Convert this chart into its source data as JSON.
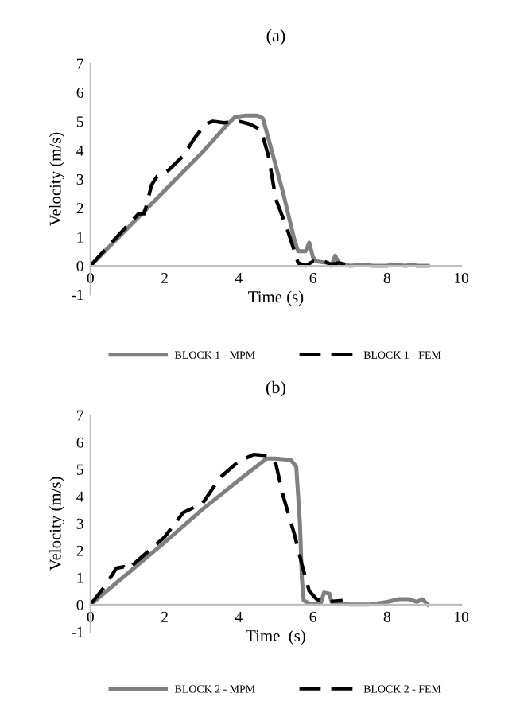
{
  "chart_data": [
    {
      "type": "line",
      "title": "(a)",
      "xlabel": "Time (s)",
      "ylabel": "Velocity (m/s)",
      "xlim": [
        0,
        10
      ],
      "ylim": [
        -1,
        7
      ],
      "xticks": [
        0,
        2,
        4,
        6,
        8,
        10
      ],
      "yticks": [
        -1,
        0,
        1,
        2,
        3,
        4,
        5,
        6,
        7
      ],
      "grid": false,
      "legend": "bottom",
      "marker": "none",
      "series": [
        {
          "name": "BLOCK 1 - MPM",
          "color": "#808080",
          "line_style": "solid",
          "x": [
            0,
            1,
            2,
            3,
            3.7,
            3.9,
            4.2,
            4.5,
            4.65,
            4.8,
            5.2,
            5.5,
            5.6,
            5.8,
            5.9,
            6.0,
            6.1,
            6.4,
            6.5,
            6.6,
            6.7,
            7,
            7.5,
            7.6,
            8,
            8.1,
            8.5,
            8.7,
            8.8,
            9.1
          ],
          "values": [
            0,
            1.3,
            2.6,
            3.9,
            4.9,
            5.15,
            5.2,
            5.2,
            5.1,
            4.4,
            2.5,
            0.9,
            0.5,
            0.5,
            0.8,
            0.3,
            0.15,
            0.1,
            0,
            0.35,
            0.1,
            0,
            0.05,
            0,
            0,
            0.05,
            0,
            0.05,
            0,
            0
          ]
        },
        {
          "name": "BLOCK 1 - FEM",
          "color": "#000000",
          "line_style": "dashed",
          "x": [
            0,
            0.5,
            1,
            1.3,
            1.45,
            1.65,
            1.8,
            2.1,
            2.5,
            2.8,
            3.1,
            3.3,
            3.6,
            4.0,
            4.3,
            4.6,
            4.8,
            5.0,
            5.3,
            5.5,
            5.6,
            5.8,
            6.0,
            6.3,
            6.5,
            6.7,
            7.0
          ],
          "values": [
            0,
            0.7,
            1.4,
            1.8,
            1.8,
            2.8,
            3.1,
            3.3,
            3.8,
            4.4,
            4.9,
            5.0,
            4.95,
            5.0,
            4.9,
            4.7,
            3.8,
            2.3,
            1.3,
            0.5,
            0.1,
            0,
            0.15,
            0.15,
            0.05,
            0.1,
            0
          ]
        }
      ]
    },
    {
      "type": "line",
      "title": "(b)",
      "xlabel": "Time  (s)",
      "ylabel": "Velocity (m/s)",
      "xlim": [
        0,
        10
      ],
      "ylim": [
        -1,
        7
      ],
      "xticks": [
        0,
        2,
        4,
        6,
        8,
        10
      ],
      "yticks": [
        -1,
        0,
        1,
        2,
        3,
        4,
        5,
        6,
        7
      ],
      "grid": false,
      "legend": "bottom",
      "marker": "none",
      "series": [
        {
          "name": "BLOCK 2 - MPM",
          "color": "#808080",
          "line_style": "solid",
          "x": [
            0,
            1,
            2,
            3,
            4,
            4.75,
            5.0,
            5.4,
            5.55,
            5.65,
            5.7,
            5.75,
            5.9,
            6.2,
            6.3,
            6.45,
            6.5,
            6.7,
            7,
            7.5,
            8,
            8.3,
            8.6,
            8.8,
            8.95,
            9.1
          ],
          "values": [
            0,
            1.15,
            2.3,
            3.5,
            4.6,
            5.4,
            5.4,
            5.35,
            5.1,
            3.0,
            1.0,
            0.15,
            0.05,
            0,
            0.45,
            0.4,
            0.1,
            0.05,
            0,
            0,
            0.1,
            0.2,
            0.2,
            0.1,
            0.2,
            0
          ]
        },
        {
          "name": "BLOCK 2 - FEM",
          "color": "#000000",
          "line_style": "dashed",
          "x": [
            0,
            0.4,
            0.7,
            0.9,
            1.0,
            1.5,
            2.0,
            2.5,
            2.8,
            3.0,
            3.5,
            4.0,
            4.4,
            4.8,
            5.0,
            5.2,
            5.5,
            5.7,
            5.9,
            6.1,
            6.3,
            6.8
          ],
          "values": [
            0,
            0.7,
            1.35,
            1.4,
            1.3,
            1.9,
            2.5,
            3.4,
            3.6,
            3.7,
            4.7,
            5.3,
            5.55,
            5.5,
            5.2,
            4.0,
            2.6,
            1.5,
            0.5,
            0.2,
            0.1,
            0.15
          ]
        }
      ]
    }
  ]
}
